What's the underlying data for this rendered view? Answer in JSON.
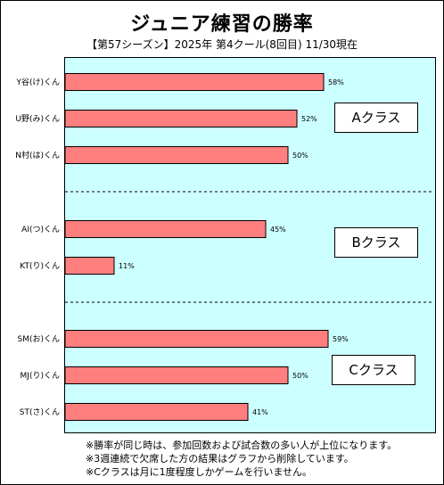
{
  "title": "ジュニア練習の勝率",
  "subtitle": "【第57シーズン】2025年 第4クール(8回目) 11/30現在",
  "groups": [
    {
      "label": "Aクラス"
    },
    {
      "label": "Bクラス"
    },
    {
      "label": "Cクラス"
    }
  ],
  "notes": [
    "※勝率が同じ時は、参加回数および試合数の多い人が上位になります。",
    "※3週連続で欠席した方の結果はグラフから削除しています。",
    "※Cクラスは月に1度程度しかゲームを行いません。"
  ],
  "colors": {
    "bar": "#ff7f7f",
    "plot_background": "#ccffff"
  },
  "chart_data": {
    "type": "bar",
    "orientation": "horizontal",
    "xlim": [
      0,
      70
    ],
    "grid": false,
    "categories": [
      "Y谷(け)くん",
      "U野(み)くん",
      "N村(は)くん",
      "AI(つ)くん",
      "KT(り)くん",
      "SM(お)くん",
      "MJ(り)くん",
      "ST(さ)くん"
    ],
    "values": [
      58,
      52,
      50,
      45,
      11,
      59,
      50,
      41
    ],
    "value_labels": [
      "58%",
      "52%",
      "50%",
      "45%",
      "11%",
      "59%",
      "50%",
      "41%"
    ],
    "group_index": [
      0,
      0,
      0,
      1,
      1,
      2,
      2,
      2
    ]
  }
}
